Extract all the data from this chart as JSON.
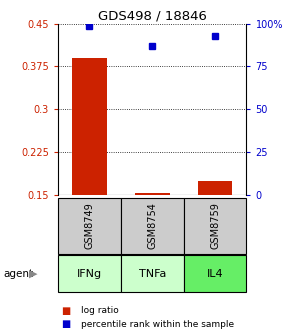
{
  "title": "GDS498 / 18846",
  "samples": [
    "IFNg",
    "TNFa",
    "IL4"
  ],
  "gsm_labels": [
    "GSM8749",
    "GSM8754",
    "GSM8759"
  ],
  "log_ratios": [
    0.39,
    0.153,
    0.175
  ],
  "percentile_ranks": [
    98.5,
    87.0,
    92.5
  ],
  "left_ylim": [
    0.15,
    0.45
  ],
  "right_ylim": [
    0,
    100
  ],
  "left_yticks": [
    0.15,
    0.225,
    0.3,
    0.375,
    0.45
  ],
  "right_yticks": [
    0,
    25,
    50,
    75,
    100
  ],
  "left_yticklabels": [
    "0.15",
    "0.225",
    "0.3",
    "0.375",
    "0.45"
  ],
  "right_yticklabels": [
    "0",
    "25",
    "50",
    "75",
    "100%"
  ],
  "bar_color": "#cc2200",
  "square_color": "#0000cc",
  "gsm_box_color": "#cccccc",
  "agent_box_colors": [
    "#ccffcc",
    "#ccffcc",
    "#66ee66"
  ],
  "legend_bar_color": "#cc2200",
  "legend_square_color": "#0000cc",
  "bar_width": 0.55,
  "figure_width": 2.9,
  "figure_height": 3.36,
  "dpi": 100
}
